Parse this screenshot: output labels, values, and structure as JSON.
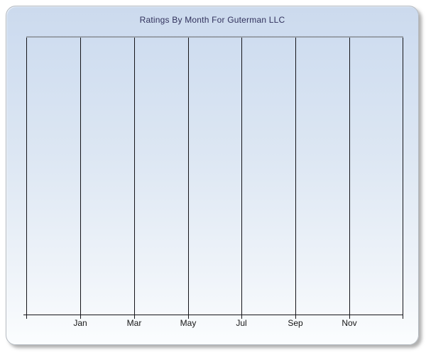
{
  "window": {
    "page_background": "#ffffff"
  },
  "chart": {
    "title": "Ratings By Month For Guterman LLC",
    "title_color": "#31315c",
    "panel_background_top": "#ccdaed",
    "panel_background_bottom": "#fbfdfe",
    "panel_border_color": "#b4bac1",
    "plot_border_color": "#99a0aa",
    "gridline_color": "#15151a",
    "axis_line_color": "#15151a",
    "tick_label_color": "#161616"
  },
  "chart_data": {
    "type": "line",
    "title": "Ratings By Month For Guterman LLC",
    "xlabel": "",
    "ylabel": "",
    "x_axis": {
      "tick_labels": [
        "Jan",
        "Mar",
        "May",
        "Jul",
        "Sep",
        "Nov"
      ],
      "gridline_count": 8,
      "grid": true
    },
    "y_axis": {
      "tick_labels": [],
      "grid": false
    },
    "series": [],
    "legend": null,
    "note_visible_data_points": "none - plot area is empty"
  }
}
